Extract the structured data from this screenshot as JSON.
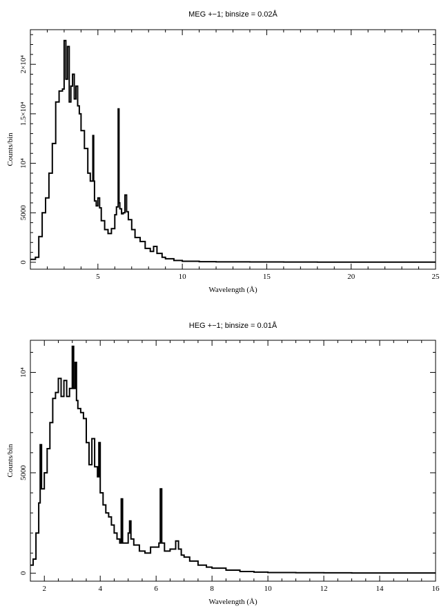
{
  "chart_data": [
    {
      "type": "line",
      "title": "MEG +−1; binsize = 0.02Å",
      "xlabel": "Wavelength (Å)",
      "ylabel": "Counts/bin",
      "xlim": [
        1.0,
        25.0
      ],
      "ylim": [
        -700,
        23500
      ],
      "x_ticks": [
        {
          "value": 5,
          "label": "5"
        },
        {
          "value": 10,
          "label": "10"
        },
        {
          "value": 15,
          "label": "15"
        },
        {
          "value": 20,
          "label": "20"
        },
        {
          "value": 25,
          "label": "25"
        }
      ],
      "y_ticks": [
        {
          "value": 0,
          "label": "0"
        },
        {
          "value": 5000,
          "label": "5000"
        },
        {
          "value": 10000,
          "label": "10⁴"
        },
        {
          "value": 15000,
          "label": "1.5×10⁴"
        },
        {
          "value": 20000,
          "label": "2×10⁴"
        }
      ],
      "grid": false,
      "series": [
        {
          "color": "#000000",
          "x": [
            1.0,
            1.3,
            1.5,
            1.7,
            1.9,
            2.1,
            2.3,
            2.5,
            2.7,
            2.9,
            3.0,
            3.1,
            3.2,
            3.3,
            3.4,
            3.5,
            3.6,
            3.7,
            3.8,
            3.9,
            4.0,
            4.2,
            4.4,
            4.55,
            4.7,
            4.75,
            4.8,
            4.9,
            5.0,
            5.1,
            5.2,
            5.4,
            5.6,
            5.8,
            6.0,
            6.1,
            6.2,
            6.25,
            6.3,
            6.4,
            6.5,
            6.6,
            6.7,
            6.8,
            7.0,
            7.2,
            7.5,
            7.8,
            8.1,
            8.3,
            8.5,
            8.8,
            9.0,
            9.5,
            10.0,
            11.0,
            12.0,
            14.0,
            16.0,
            18.0,
            20.0,
            22.0,
            25.0
          ],
          "values": [
            300,
            500,
            2600,
            5000,
            6500,
            9000,
            12000,
            16200,
            17300,
            17500,
            22400,
            18500,
            21800,
            16200,
            17800,
            19000,
            16500,
            17800,
            15800,
            15000,
            13300,
            11500,
            9000,
            8200,
            12800,
            8200,
            6200,
            5700,
            6500,
            5500,
            4200,
            3300,
            2900,
            3400,
            4800,
            5600,
            15500,
            6000,
            5400,
            4900,
            5000,
            6800,
            5100,
            4300,
            3300,
            2500,
            2100,
            1400,
            1100,
            1600,
            900,
            500,
            350,
            180,
            100,
            60,
            40,
            30,
            25,
            20,
            20,
            20,
            20
          ]
        }
      ]
    },
    {
      "type": "line",
      "title": "HEG +−1; binsize = 0.01Å",
      "xlabel": "Wavelength (Å)",
      "ylabel": "Counts/bin",
      "xlim": [
        1.5,
        16.0
      ],
      "ylim": [
        -400,
        11600
      ],
      "x_ticks": [
        {
          "value": 2,
          "label": "2"
        },
        {
          "value": 4,
          "label": "4"
        },
        {
          "value": 6,
          "label": "6"
        },
        {
          "value": 8,
          "label": "8"
        },
        {
          "value": 10,
          "label": "10"
        },
        {
          "value": 12,
          "label": "12"
        },
        {
          "value": 14,
          "label": "14"
        },
        {
          "value": 16,
          "label": "16"
        }
      ],
      "y_ticks": [
        {
          "value": 0,
          "label": "0"
        },
        {
          "value": 5000,
          "label": "5000"
        },
        {
          "value": 10000,
          "label": "10⁴"
        }
      ],
      "grid": false,
      "series": [
        {
          "color": "#000000",
          "x": [
            1.5,
            1.6,
            1.7,
            1.8,
            1.85,
            1.9,
            2.0,
            2.1,
            2.2,
            2.3,
            2.4,
            2.5,
            2.6,
            2.7,
            2.8,
            2.9,
            3.0,
            3.05,
            3.1,
            3.15,
            3.2,
            3.3,
            3.4,
            3.5,
            3.6,
            3.7,
            3.8,
            3.9,
            3.95,
            4.0,
            4.1,
            4.2,
            4.3,
            4.4,
            4.5,
            4.6,
            4.7,
            4.75,
            4.8,
            4.9,
            5.0,
            5.05,
            5.1,
            5.2,
            5.4,
            5.6,
            5.8,
            6.0,
            6.1,
            6.15,
            6.2,
            6.3,
            6.5,
            6.7,
            6.8,
            6.9,
            7.0,
            7.2,
            7.5,
            7.8,
            8.0,
            8.5,
            9.0,
            9.5,
            10.0,
            11.0,
            12.0,
            13.0,
            14.0,
            15.0,
            16.0
          ],
          "values": [
            400,
            700,
            2000,
            3500,
            6400,
            4200,
            5000,
            6200,
            7500,
            8700,
            9000,
            9700,
            8800,
            9600,
            8800,
            9200,
            11300,
            9200,
            10500,
            8600,
            8200,
            8000,
            7700,
            6500,
            5400,
            6700,
            5300,
            4800,
            6500,
            4000,
            3400,
            3000,
            2800,
            2400,
            2000,
            1700,
            1500,
            3700,
            1500,
            1500,
            2000,
            2600,
            1700,
            1400,
            1100,
            1000,
            1300,
            1300,
            1500,
            4200,
            1500,
            1100,
            1200,
            1600,
            1200,
            900,
            800,
            600,
            400,
            300,
            250,
            150,
            80,
            50,
            30,
            20,
            15,
            10,
            10,
            10,
            10
          ]
        }
      ]
    }
  ]
}
